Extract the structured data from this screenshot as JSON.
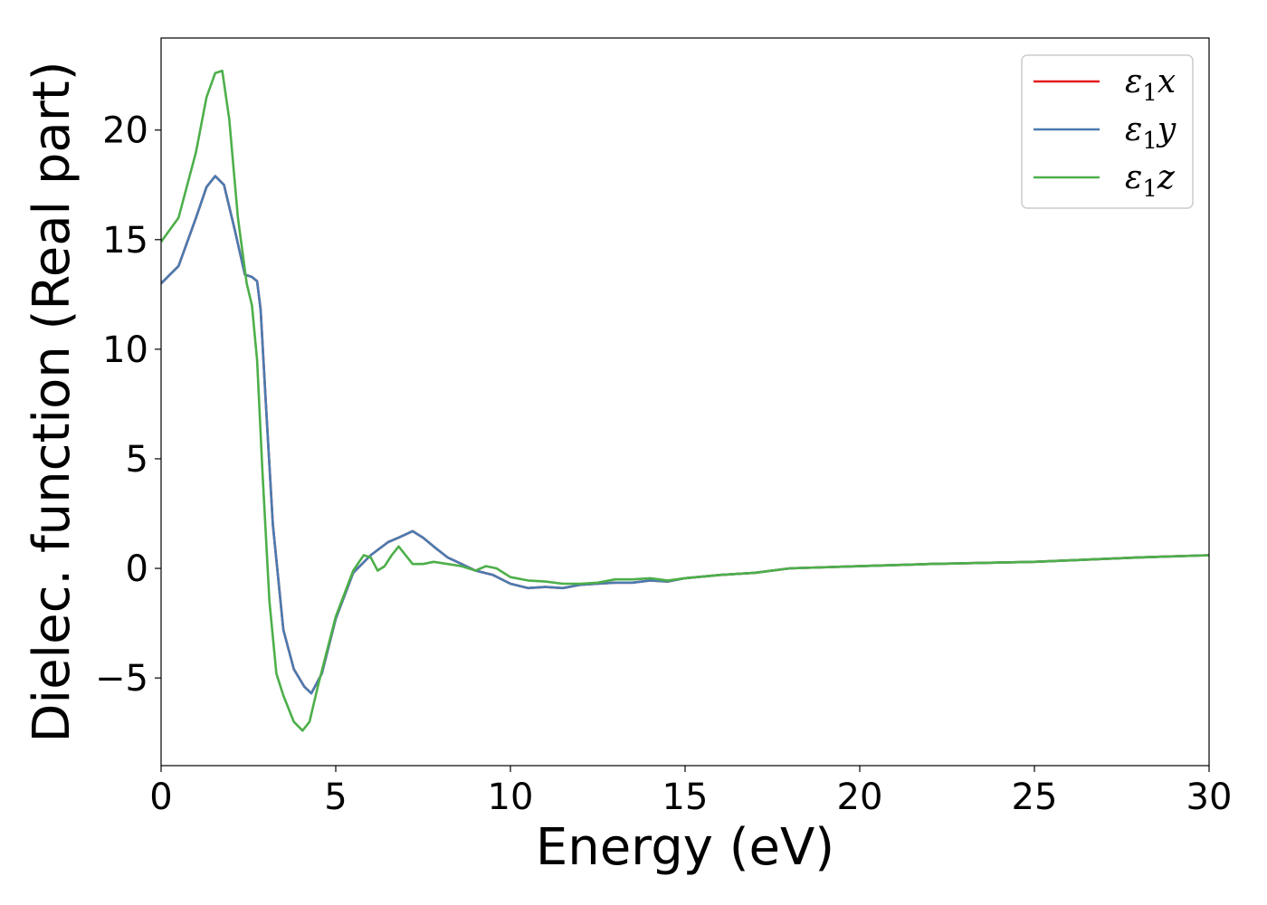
{
  "chart_data": {
    "type": "line",
    "title": "",
    "xlabel": "Energy (eV)",
    "ylabel": "Dielec. function (Real part)",
    "xlim": [
      0,
      30
    ],
    "ylim": [
      -9,
      24.2
    ],
    "xticks": [
      0,
      5,
      10,
      15,
      20,
      25,
      30
    ],
    "xtick_labels": [
      "0",
      "5",
      "10",
      "15",
      "20",
      "25",
      "30"
    ],
    "yticks": [
      -5,
      0,
      5,
      10,
      15,
      20
    ],
    "ytick_labels": [
      "−5",
      "0",
      "5",
      "10",
      "15",
      "20"
    ],
    "grid": false,
    "legend_position": "top-right",
    "series": [
      {
        "name": "ε1x",
        "legend_main": "ε",
        "legend_sub": "1",
        "legend_suffix": "x",
        "color": "#e41a1c",
        "x": [
          0,
          0.5,
          1.0,
          1.3,
          1.55,
          1.8,
          2.1,
          2.4,
          2.6,
          2.75,
          2.85,
          3.0,
          3.2,
          3.5,
          3.8,
          4.1,
          4.3,
          4.6,
          5.0,
          5.5,
          6.0,
          6.5,
          6.8,
          7.2,
          7.5,
          7.8,
          8.2,
          8.6,
          9.0,
          9.5,
          10.0,
          10.5,
          11.0,
          11.5,
          12.0,
          12.5,
          13.0,
          13.5,
          14.0,
          14.5,
          15.0,
          16.0,
          17.0,
          18.0,
          20.0,
          22.0,
          25.0,
          28.0,
          30.0
        ],
        "values": [
          13.0,
          13.8,
          16.0,
          17.4,
          17.9,
          17.5,
          15.5,
          13.4,
          13.3,
          13.1,
          11.8,
          7.5,
          2.0,
          -2.8,
          -4.6,
          -5.4,
          -5.7,
          -4.8,
          -2.3,
          -0.2,
          0.6,
          1.2,
          1.4,
          1.7,
          1.4,
          1.0,
          0.5,
          0.2,
          -0.1,
          -0.3,
          -0.7,
          -0.9,
          -0.85,
          -0.9,
          -0.75,
          -0.7,
          -0.65,
          -0.65,
          -0.55,
          -0.6,
          -0.45,
          -0.3,
          -0.2,
          0.0,
          0.1,
          0.2,
          0.3,
          0.5,
          0.6
        ]
      },
      {
        "name": "ε1y",
        "legend_main": "ε",
        "legend_sub": "1",
        "legend_suffix": "y",
        "color": "#4a7bb0",
        "x": [
          0,
          0.5,
          1.0,
          1.3,
          1.55,
          1.8,
          2.1,
          2.4,
          2.6,
          2.75,
          2.85,
          3.0,
          3.2,
          3.5,
          3.8,
          4.1,
          4.3,
          4.6,
          5.0,
          5.5,
          6.0,
          6.5,
          6.8,
          7.2,
          7.5,
          7.8,
          8.2,
          8.6,
          9.0,
          9.5,
          10.0,
          10.5,
          11.0,
          11.5,
          12.0,
          12.5,
          13.0,
          13.5,
          14.0,
          14.5,
          15.0,
          16.0,
          17.0,
          18.0,
          20.0,
          22.0,
          25.0,
          28.0,
          30.0
        ],
        "values": [
          13.0,
          13.8,
          16.0,
          17.4,
          17.9,
          17.5,
          15.5,
          13.4,
          13.3,
          13.1,
          11.8,
          7.5,
          2.0,
          -2.8,
          -4.6,
          -5.4,
          -5.7,
          -4.8,
          -2.3,
          -0.2,
          0.6,
          1.2,
          1.4,
          1.7,
          1.4,
          1.0,
          0.5,
          0.2,
          -0.1,
          -0.3,
          -0.7,
          -0.9,
          -0.85,
          -0.9,
          -0.75,
          -0.7,
          -0.65,
          -0.65,
          -0.55,
          -0.6,
          -0.45,
          -0.3,
          -0.2,
          0.0,
          0.1,
          0.2,
          0.3,
          0.5,
          0.6
        ]
      },
      {
        "name": "ε1z",
        "legend_main": "ε",
        "legend_sub": "1",
        "legend_suffix": "z",
        "color": "#4daf4a",
        "x": [
          0,
          0.5,
          1.0,
          1.3,
          1.55,
          1.75,
          1.95,
          2.2,
          2.45,
          2.6,
          2.75,
          2.9,
          3.1,
          3.3,
          3.5,
          3.8,
          4.05,
          4.25,
          4.5,
          5.0,
          5.5,
          5.8,
          6.0,
          6.2,
          6.4,
          6.6,
          6.8,
          7.0,
          7.2,
          7.5,
          7.8,
          8.2,
          8.6,
          9.0,
          9.3,
          9.6,
          10.0,
          10.5,
          11.0,
          11.5,
          12.0,
          12.5,
          13.0,
          13.5,
          14.0,
          14.5,
          15.0,
          16.0,
          17.0,
          18.0,
          20.0,
          22.0,
          25.0,
          28.0,
          30.0
        ],
        "values": [
          14.9,
          16.0,
          19.0,
          21.5,
          22.6,
          22.7,
          20.5,
          16.0,
          13.0,
          12.0,
          9.5,
          4.5,
          -1.5,
          -4.8,
          -5.8,
          -7.0,
          -7.4,
          -7.0,
          -5.3,
          -2.2,
          -0.1,
          0.6,
          0.5,
          -0.1,
          0.1,
          0.6,
          1.0,
          0.6,
          0.2,
          0.2,
          0.3,
          0.2,
          0.1,
          -0.1,
          0.1,
          0.0,
          -0.4,
          -0.55,
          -0.6,
          -0.7,
          -0.7,
          -0.65,
          -0.5,
          -0.5,
          -0.45,
          -0.55,
          -0.45,
          -0.3,
          -0.2,
          0.0,
          0.1,
          0.2,
          0.3,
          0.5,
          0.6
        ]
      }
    ]
  }
}
